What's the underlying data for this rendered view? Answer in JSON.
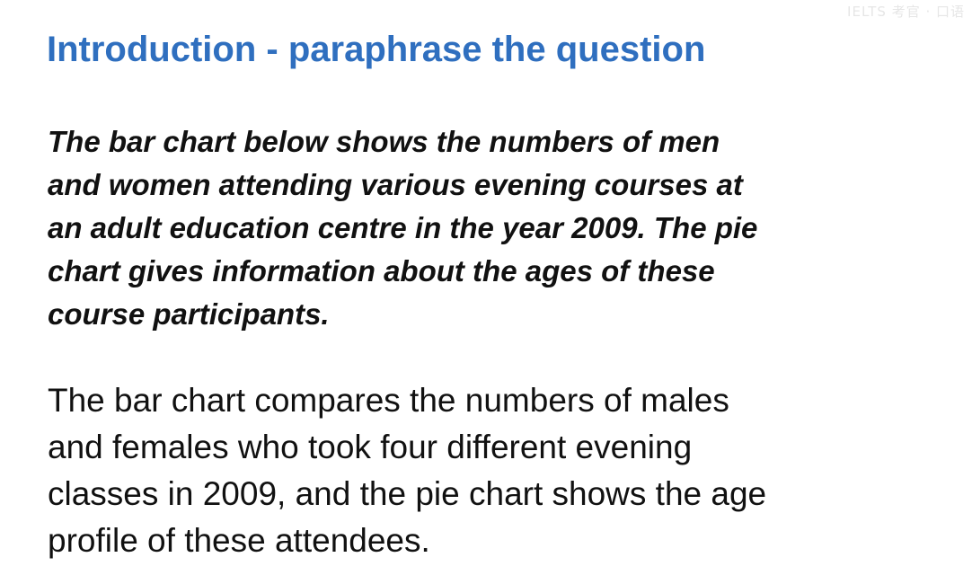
{
  "watermark": "IELTS 考官 · 口语",
  "slide": {
    "title": "Introduction - paraphrase the question",
    "question_lines": [
      "The bar chart below shows the numbers of men",
      "and women attending various evening courses at",
      "an adult education centre in the year 2009. The pie",
      "chart gives information about the ages of these",
      "course participants."
    ],
    "answer_lines": [
      "The bar chart compares the numbers of males",
      "and females who took four different evening",
      "classes in 2009, and the pie chart shows the age",
      "profile of these attendees."
    ]
  },
  "colors": {
    "title": "#2f6fbf",
    "text": "#111111",
    "background": "#ffffff"
  }
}
